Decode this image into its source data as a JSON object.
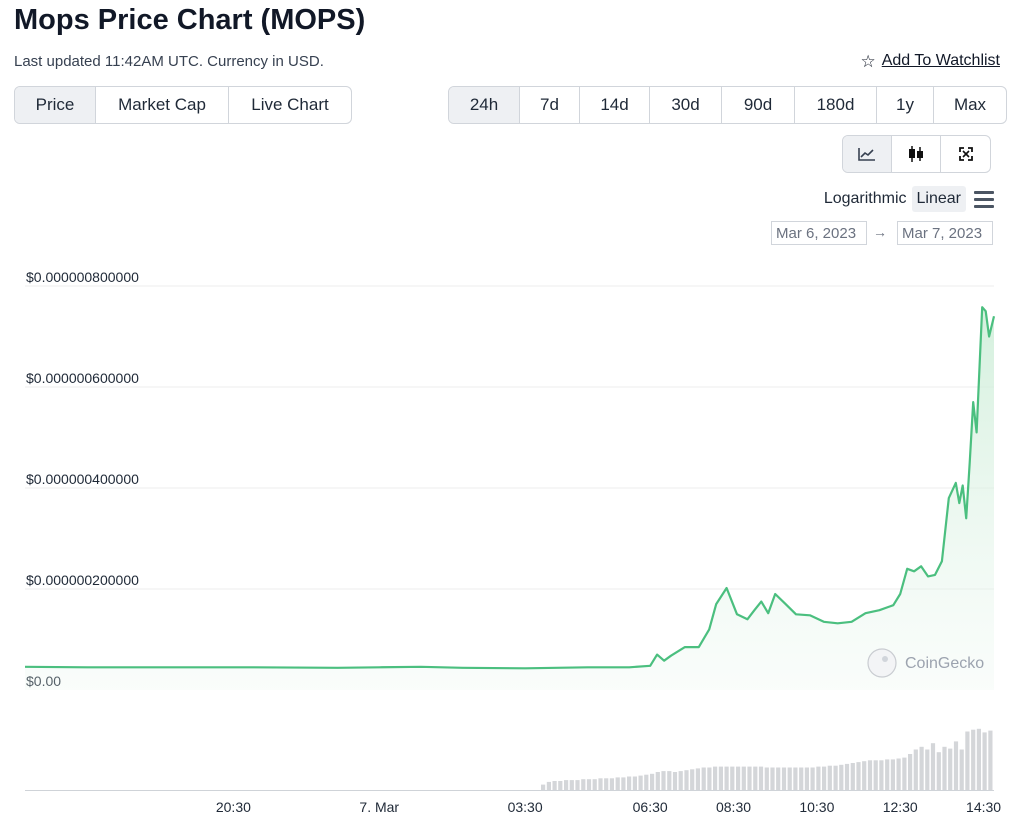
{
  "header": {
    "title": "Mops Price Chart (MOPS)",
    "updated": "Last updated 11:42AM UTC. Currency in USD.",
    "watchlist_label": "Add To Watchlist"
  },
  "tabs": [
    "Price",
    "Market Cap",
    "Live Chart"
  ],
  "active_tab": "Price",
  "ranges": [
    "24h",
    "7d",
    "14d",
    "30d",
    "90d",
    "180d",
    "1y",
    "Max"
  ],
  "active_range": "24h",
  "chart_types": [
    "line-chart-icon",
    "candlestick-icon",
    "fullscreen-icon"
  ],
  "scale": {
    "log_label": "Logarithmic",
    "linear_label": "Linear",
    "active": "Linear"
  },
  "date_range": {
    "from": "Mar 6, 2023",
    "arrow": "→",
    "to": "Mar 7, 2023"
  },
  "watermark": "CoinGecko",
  "colors": {
    "line": "#4bbf7f",
    "fill": "#e9f6ee",
    "volume": "#d4d6d9",
    "grid": "#ececec"
  },
  "chart_data": {
    "type": "area",
    "ylabel_ticks": [
      "$0.00",
      "$0.000000200000",
      "$0.000000400000",
      "$0.000000600000",
      "$0.000000800000"
    ],
    "ylim": [
      0,
      8e-07
    ],
    "x_tick_labels": [
      "20:30",
      "7. Mar",
      "03:30",
      "06:30",
      "08:30",
      "10:30",
      "12:30",
      "14:30"
    ],
    "x_tick_times": [
      "2023-03-06T20:30",
      "2023-03-07T00:00",
      "2023-03-07T03:30",
      "2023-03-07T06:30",
      "2023-03-07T08:30",
      "2023-03-07T10:30",
      "2023-03-07T12:30",
      "2023-03-07T14:30"
    ],
    "xlim": [
      "2023-03-06T15:30",
      "2023-03-07T14:45"
    ],
    "grid": true,
    "series": [
      {
        "values": [
          [
            "2023-03-06T15:30",
            4.6e-08
          ],
          [
            "2023-03-06T17:00",
            4.5e-08
          ],
          [
            "2023-03-06T19:00",
            4.5e-08
          ],
          [
            "2023-03-06T21:00",
            4.5e-08
          ],
          [
            "2023-03-06T23:00",
            4.4e-08
          ],
          [
            "2023-03-07T00:00",
            4.5e-08
          ],
          [
            "2023-03-07T01:00",
            4.6e-08
          ],
          [
            "2023-03-07T02:00",
            4.4e-08
          ],
          [
            "2023-03-07T03:30",
            4.3e-08
          ],
          [
            "2023-03-07T05:00",
            4.5e-08
          ],
          [
            "2023-03-07T06:00",
            4.5e-08
          ],
          [
            "2023-03-07T06:30",
            4.8e-08
          ],
          [
            "2023-03-07T06:40",
            7e-08
          ],
          [
            "2023-03-07T06:50",
            5.8e-08
          ],
          [
            "2023-03-07T07:00",
            6.8e-08
          ],
          [
            "2023-03-07T07:20",
            8.5e-08
          ],
          [
            "2023-03-07T07:40",
            8.5e-08
          ],
          [
            "2023-03-07T07:55",
            1.2e-07
          ],
          [
            "2023-03-07T08:05",
            1.7e-07
          ],
          [
            "2023-03-07T08:20",
            2.02e-07
          ],
          [
            "2023-03-07T08:35",
            1.5e-07
          ],
          [
            "2023-03-07T08:50",
            1.4e-07
          ],
          [
            "2023-03-07T09:00",
            1.58e-07
          ],
          [
            "2023-03-07T09:10",
            1.75e-07
          ],
          [
            "2023-03-07T09:20",
            1.52e-07
          ],
          [
            "2023-03-07T09:30",
            1.9e-07
          ],
          [
            "2023-03-07T09:45",
            1.7e-07
          ],
          [
            "2023-03-07T10:00",
            1.5e-07
          ],
          [
            "2023-03-07T10:20",
            1.48e-07
          ],
          [
            "2023-03-07T10:40",
            1.35e-07
          ],
          [
            "2023-03-07T11:00",
            1.32e-07
          ],
          [
            "2023-03-07T11:20",
            1.35e-07
          ],
          [
            "2023-03-07T11:40",
            1.52e-07
          ],
          [
            "2023-03-07T12:00",
            1.58e-07
          ],
          [
            "2023-03-07T12:20",
            1.68e-07
          ],
          [
            "2023-03-07T12:30",
            1.9e-07
          ],
          [
            "2023-03-07T12:40",
            2.4e-07
          ],
          [
            "2023-03-07T12:50",
            2.35e-07
          ],
          [
            "2023-03-07T13:00",
            2.45e-07
          ],
          [
            "2023-03-07T13:10",
            2.25e-07
          ],
          [
            "2023-03-07T13:20",
            2.28e-07
          ],
          [
            "2023-03-07T13:30",
            2.55e-07
          ],
          [
            "2023-03-07T13:40",
            3.8e-07
          ],
          [
            "2023-03-07T13:50",
            4.1e-07
          ],
          [
            "2023-03-07T13:55",
            3.7e-07
          ],
          [
            "2023-03-07T14:00",
            4.05e-07
          ],
          [
            "2023-03-07T14:05",
            3.4e-07
          ],
          [
            "2023-03-07T14:10",
            4.5e-07
          ],
          [
            "2023-03-07T14:15",
            5.7e-07
          ],
          [
            "2023-03-07T14:20",
            5.1e-07
          ],
          [
            "2023-03-07T14:28",
            7.58e-07
          ],
          [
            "2023-03-07T14:33",
            7.5e-07
          ],
          [
            "2023-03-07T14:38",
            7e-07
          ],
          [
            "2023-03-07T14:45",
            7.4e-07
          ]
        ]
      }
    ],
    "volume_relative": [
      0,
      0,
      0,
      0,
      0,
      0,
      0,
      0,
      0,
      0,
      0,
      0,
      0,
      0,
      0,
      0,
      0,
      0,
      0,
      0,
      0,
      0,
      0,
      0,
      0,
      0,
      0,
      0,
      0,
      0,
      0,
      0,
      0,
      0,
      0,
      0,
      0,
      0,
      0,
      0,
      0,
      0,
      0,
      0,
      0,
      0,
      0,
      0,
      0,
      0,
      0,
      0,
      0,
      0,
      0,
      0,
      0,
      0,
      0,
      0,
      0,
      0,
      0,
      0,
      0,
      0,
      0,
      0,
      0,
      0,
      0,
      0,
      0,
      0,
      0,
      0,
      0,
      0,
      0,
      0,
      0,
      0,
      0,
      0,
      0,
      0,
      0,
      0,
      0,
      0,
      0.06,
      0.09,
      0.1,
      0.1,
      0.11,
      0.11,
      0.11,
      0.12,
      0.12,
      0.12,
      0.13,
      0.13,
      0.13,
      0.14,
      0.14,
      0.15,
      0.15,
      0.16,
      0.17,
      0.18,
      0.2,
      0.21,
      0.21,
      0.2,
      0.21,
      0.22,
      0.23,
      0.24,
      0.25,
      0.25,
      0.26,
      0.26,
      0.26,
      0.26,
      0.26,
      0.26,
      0.26,
      0.26,
      0.26,
      0.25,
      0.25,
      0.25,
      0.25,
      0.25,
      0.25,
      0.25,
      0.25,
      0.25,
      0.26,
      0.26,
      0.27,
      0.27,
      0.28,
      0.29,
      0.3,
      0.31,
      0.32,
      0.33,
      0.33,
      0.33,
      0.34,
      0.34,
      0.35,
      0.36,
      0.4,
      0.45,
      0.48,
      0.45,
      0.52,
      0.42,
      0.48,
      0.46,
      0.54,
      0.45,
      0.65,
      0.67,
      0.68,
      0.64,
      0.66
    ]
  }
}
